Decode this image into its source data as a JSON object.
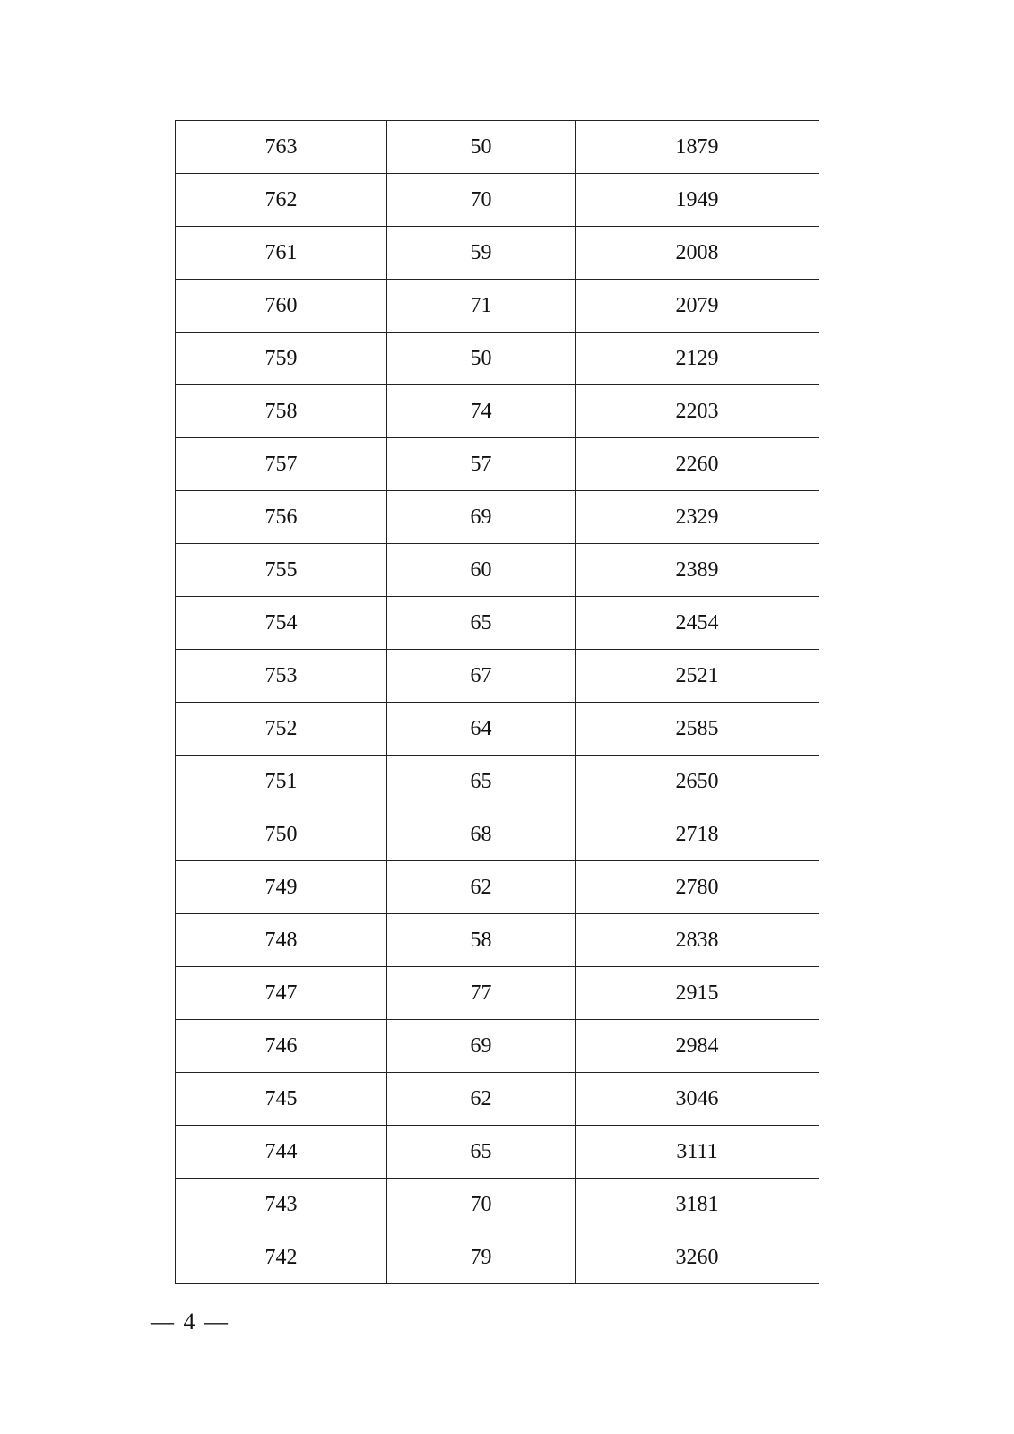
{
  "table": {
    "rows": [
      [
        "763",
        "50",
        "1879"
      ],
      [
        "762",
        "70",
        "1949"
      ],
      [
        "761",
        "59",
        "2008"
      ],
      [
        "760",
        "71",
        "2079"
      ],
      [
        "759",
        "50",
        "2129"
      ],
      [
        "758",
        "74",
        "2203"
      ],
      [
        "757",
        "57",
        "2260"
      ],
      [
        "756",
        "69",
        "2329"
      ],
      [
        "755",
        "60",
        "2389"
      ],
      [
        "754",
        "65",
        "2454"
      ],
      [
        "753",
        "67",
        "2521"
      ],
      [
        "752",
        "64",
        "2585"
      ],
      [
        "751",
        "65",
        "2650"
      ],
      [
        "750",
        "68",
        "2718"
      ],
      [
        "749",
        "62",
        "2780"
      ],
      [
        "748",
        "58",
        "2838"
      ],
      [
        "747",
        "77",
        "2915"
      ],
      [
        "746",
        "69",
        "2984"
      ],
      [
        "745",
        "62",
        "3046"
      ],
      [
        "744",
        "65",
        "3111"
      ],
      [
        "743",
        "70",
        "3181"
      ],
      [
        "742",
        "79",
        "3260"
      ]
    ]
  },
  "footer": {
    "page_number": "— 4 —"
  }
}
